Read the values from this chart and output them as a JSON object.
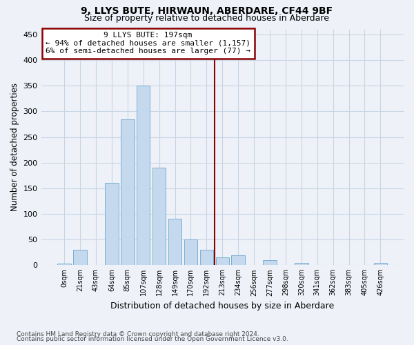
{
  "title1": "9, LLYS BUTE, HIRWAUN, ABERDARE, CF44 9BF",
  "title2": "Size of property relative to detached houses in Aberdare",
  "xlabel": "Distribution of detached houses by size in Aberdare",
  "ylabel": "Number of detached properties",
  "footer1": "Contains HM Land Registry data © Crown copyright and database right 2024.",
  "footer2": "Contains public sector information licensed under the Open Government Licence v3.0.",
  "bin_labels": [
    "0sqm",
    "21sqm",
    "43sqm",
    "64sqm",
    "85sqm",
    "107sqm",
    "128sqm",
    "149sqm",
    "170sqm",
    "192sqm",
    "213sqm",
    "234sqm",
    "256sqm",
    "277sqm",
    "298sqm",
    "320sqm",
    "341sqm",
    "362sqm",
    "383sqm",
    "405sqm",
    "426sqm"
  ],
  "bar_values": [
    3,
    30,
    0,
    160,
    285,
    350,
    190,
    90,
    50,
    30,
    15,
    19,
    0,
    10,
    0,
    5,
    0,
    1,
    0,
    0,
    4
  ],
  "bar_color": "#c5d9ee",
  "bar_edge_color": "#7bafd4",
  "grid_color": "#c8d4e4",
  "vline_color": "#8b0000",
  "vline_x": 9.5,
  "annotation_line1": "9 LLYS BUTE: 197sqm",
  "annotation_line2": "← 94% of detached houses are smaller (1,157)",
  "annotation_line3": "6% of semi-detached houses are larger (77) →",
  "annotation_box_edgecolor": "#8b0000",
  "ylim": [
    0,
    460
  ],
  "yticks": [
    0,
    50,
    100,
    150,
    200,
    250,
    300,
    350,
    400,
    450
  ],
  "background_color": "#eef2f8"
}
